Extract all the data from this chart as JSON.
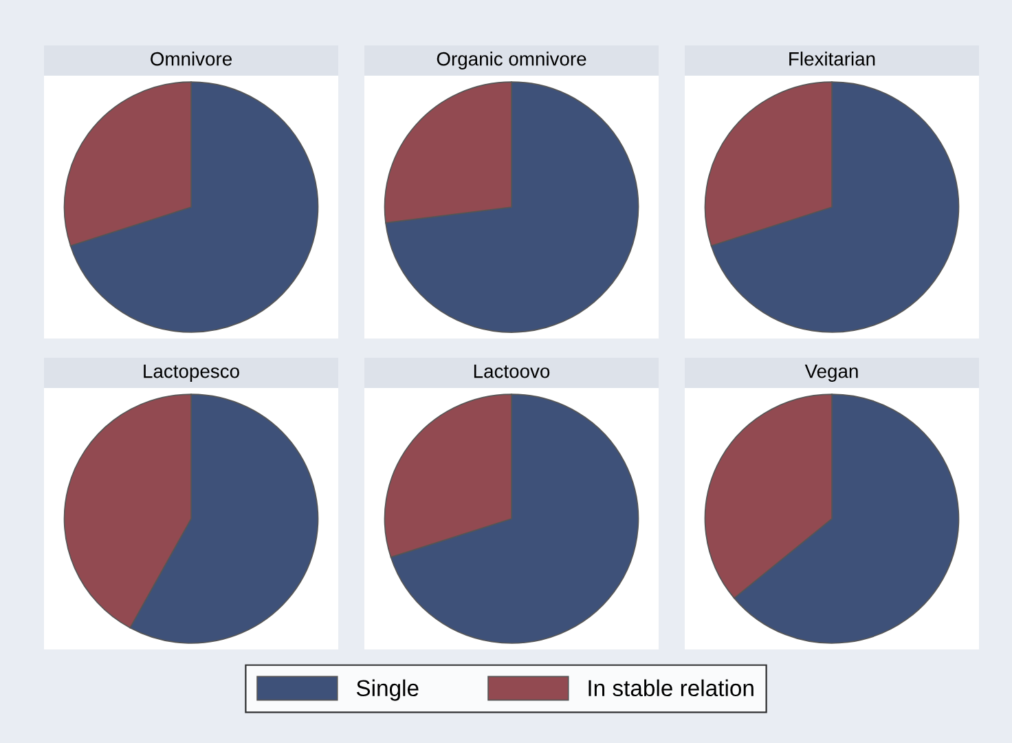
{
  "chart_data": [
    {
      "type": "pie",
      "title": "Omnivore",
      "categories": [
        "Single",
        "In stable relation"
      ],
      "values": [
        70,
        30
      ],
      "colors": [
        "#3e5179",
        "#924a51"
      ],
      "legend": "bottom"
    },
    {
      "type": "pie",
      "title": "Organic omnivore",
      "categories": [
        null,
        null
      ],
      "values": [
        73,
        27
      ],
      "colors": [
        "#3e5179",
        "#924a51"
      ]
    },
    {
      "type": "pie",
      "title": "Flexitarian",
      "categories": [
        null,
        null
      ],
      "values": [
        70,
        30
      ],
      "colors": [
        "#3e5179",
        "#924a51"
      ]
    },
    {
      "type": "pie",
      "title": "Lactopesco",
      "categories": [
        null,
        null
      ],
      "values": [
        58,
        42
      ],
      "colors": [
        "#3e5179",
        "#924a51"
      ]
    },
    {
      "type": "pie",
      "title": "Lactoovo",
      "categories": [
        null,
        null
      ],
      "values": [
        70,
        30
      ],
      "colors": [
        "#3e5179",
        "#924a51"
      ]
    },
    {
      "type": "pie",
      "title": "Vegan",
      "categories": [
        null,
        null
      ],
      "values": [
        64,
        36
      ],
      "colors": [
        "#3e5179",
        "#924a51"
      ]
    }
  ]
}
